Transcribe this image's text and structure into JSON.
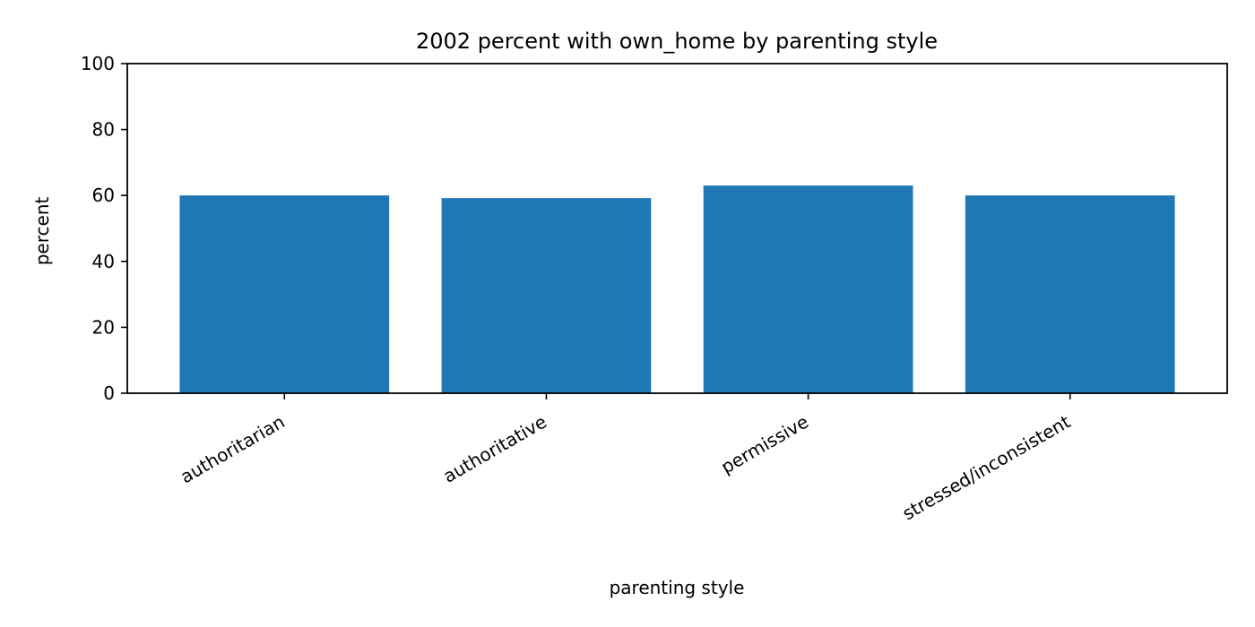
{
  "chart_data": {
    "type": "bar",
    "title": "2002 percent with own_home by parenting style",
    "xlabel": "parenting style",
    "ylabel": "percent",
    "categories": [
      "authoritarian",
      "authoritative",
      "permissive",
      "stressed/inconsistent"
    ],
    "values": [
      60,
      59.2,
      63,
      60
    ],
    "ylim": [
      0,
      100
    ],
    "yticks": [
      0,
      20,
      40,
      60,
      80,
      100
    ],
    "bar_color": "#1f77b4",
    "grid": false,
    "legend": "none"
  }
}
